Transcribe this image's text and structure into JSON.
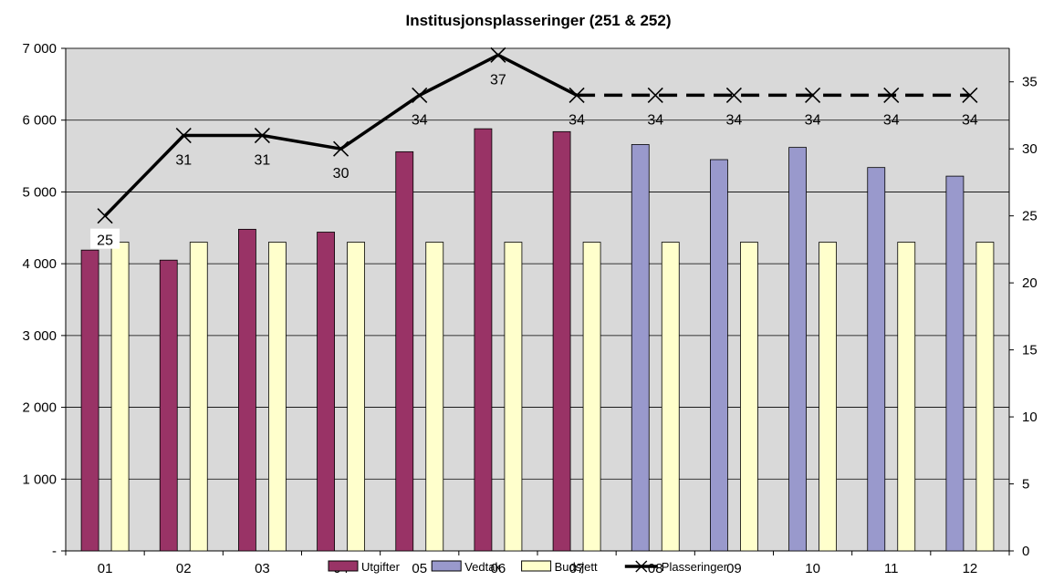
{
  "chart_data": {
    "type": "bar",
    "title": "Institusjonsplasseringer (251 & 252)",
    "categories": [
      "01",
      "02",
      "03",
      "04",
      "05",
      "06",
      "07",
      "08",
      "09",
      "10",
      "11",
      "12"
    ],
    "series": [
      {
        "name": "Utgifter",
        "type": "bar",
        "axis": "left",
        "color": "#993366",
        "values": [
          4190,
          4050,
          4480,
          4440,
          5560,
          5880,
          5840,
          null,
          null,
          null,
          null,
          null
        ]
      },
      {
        "name": "Vedtak",
        "type": "bar",
        "axis": "left",
        "color": "#9999CC",
        "values": [
          null,
          null,
          null,
          null,
          null,
          null,
          null,
          5660,
          5450,
          5620,
          5340,
          5220
        ]
      },
      {
        "name": "Budsjett",
        "type": "bar",
        "axis": "left",
        "color": "#FFFFCC",
        "values": [
          4300,
          4300,
          4300,
          4300,
          4300,
          4300,
          4300,
          4300,
          4300,
          4300,
          4300,
          4300
        ]
      },
      {
        "name": "Plasseringer",
        "type": "line",
        "axis": "right",
        "color": "#000000",
        "values": [
          25,
          31,
          31,
          30,
          34,
          37,
          34,
          34,
          34,
          34,
          34,
          34
        ],
        "labels": [
          "25",
          "31",
          "31",
          "30",
          "34",
          "37",
          "34",
          "34",
          "34",
          "34",
          "34",
          "34"
        ],
        "dashed_from_index": 6
      }
    ],
    "y_left": {
      "min": 0,
      "max": 7000,
      "ticks": [
        0,
        1000,
        2000,
        3000,
        4000,
        5000,
        6000,
        7000
      ],
      "tick_labels": [
        "-",
        "1 000",
        "2 000",
        "3 000",
        "4 000",
        "5 000",
        "6 000",
        "7 000"
      ]
    },
    "y_right": {
      "min": 0,
      "max": 37.5,
      "ticks": [
        0,
        5,
        10,
        15,
        20,
        25,
        30,
        35
      ],
      "tick_labels": [
        "0",
        "5",
        "10",
        "15",
        "20",
        "25",
        "30",
        "35"
      ]
    },
    "legend": {
      "position": "bottom",
      "entries": [
        "Utgifter",
        "Vedtak",
        "Budsjett",
        "Plasseringer"
      ]
    },
    "plot_background": "#D9D9D9",
    "grid": "horizontal"
  }
}
